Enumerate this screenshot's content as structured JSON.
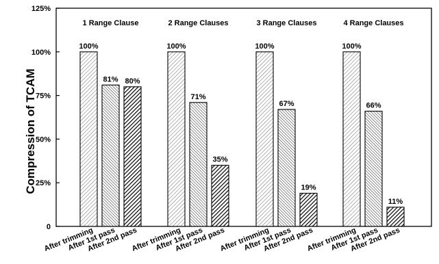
{
  "chart_data": {
    "type": "bar",
    "title": "",
    "ylabel": "Compression of TCAM",
    "xlabel": "",
    "ylim": [
      0,
      125
    ],
    "yticks": [
      {
        "value": 0,
        "label": "0"
      },
      {
        "value": 25,
        "label": "25%"
      },
      {
        "value": 50,
        "label": "50%"
      },
      {
        "value": 75,
        "label": "75%"
      },
      {
        "value": 100,
        "label": "100%"
      },
      {
        "value": 125,
        "label": "125%"
      }
    ],
    "categories": [
      "After trimming",
      "After 1st pass",
      "After 2nd pass"
    ],
    "groups": [
      {
        "name": "1 Range Clause",
        "values": [
          100,
          81,
          80
        ],
        "labels": [
          "100%",
          "81%",
          "80%"
        ]
      },
      {
        "name": "2 Range Clauses",
        "values": [
          100,
          71,
          35
        ],
        "labels": [
          "100%",
          "71%",
          "35%"
        ]
      },
      {
        "name": "3 Range Clauses",
        "values": [
          100,
          67,
          19
        ],
        "labels": [
          "100%",
          "67%",
          "19%"
        ]
      },
      {
        "name": "4 Range Clauses",
        "values": [
          100,
          66,
          11
        ],
        "labels": [
          "100%",
          "66%",
          "11%"
        ]
      }
    ],
    "grid": false,
    "legend": "none"
  }
}
